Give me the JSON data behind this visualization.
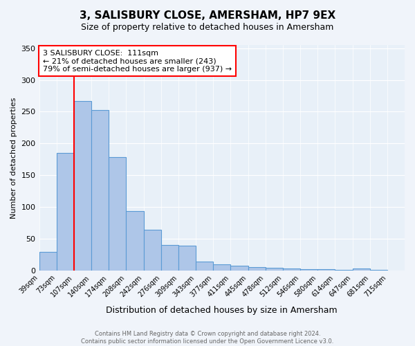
{
  "title": "3, SALISBURY CLOSE, AMERSHAM, HP7 9EX",
  "subtitle": "Size of property relative to detached houses in Amersham",
  "xlabel": "Distribution of detached houses by size in Amersham",
  "ylabel": "Number of detached properties",
  "bin_labels": [
    "39sqm",
    "73sqm",
    "107sqm",
    "140sqm",
    "174sqm",
    "208sqm",
    "242sqm",
    "276sqm",
    "309sqm",
    "343sqm",
    "377sqm",
    "411sqm",
    "445sqm",
    "478sqm",
    "512sqm",
    "546sqm",
    "580sqm",
    "614sqm",
    "647sqm",
    "681sqm",
    "715sqm"
  ],
  "bar_values": [
    30,
    185,
    267,
    253,
    179,
    94,
    64,
    40,
    39,
    14,
    10,
    8,
    6,
    5,
    3,
    2,
    2,
    1,
    3,
    1
  ],
  "bar_color": "#aec6e8",
  "bar_edge_color": "#5b9bd5",
  "vline_x_index": 2,
  "vline_color": "red",
  "ylim": [
    0,
    355
  ],
  "yticks": [
    0,
    50,
    100,
    150,
    200,
    250,
    300,
    350
  ],
  "annotation_title": "3 SALISBURY CLOSE:  111sqm",
  "annotation_line1": "← 21% of detached houses are smaller (243)",
  "annotation_line2": "79% of semi-detached houses are larger (937) →",
  "annotation_box_color": "red",
  "footer_line1": "Contains HM Land Registry data © Crown copyright and database right 2024.",
  "footer_line2": "Contains public sector information licensed under the Open Government Licence v3.0.",
  "background_color": "#f0f4fa",
  "plot_background": "#e8f0f8"
}
